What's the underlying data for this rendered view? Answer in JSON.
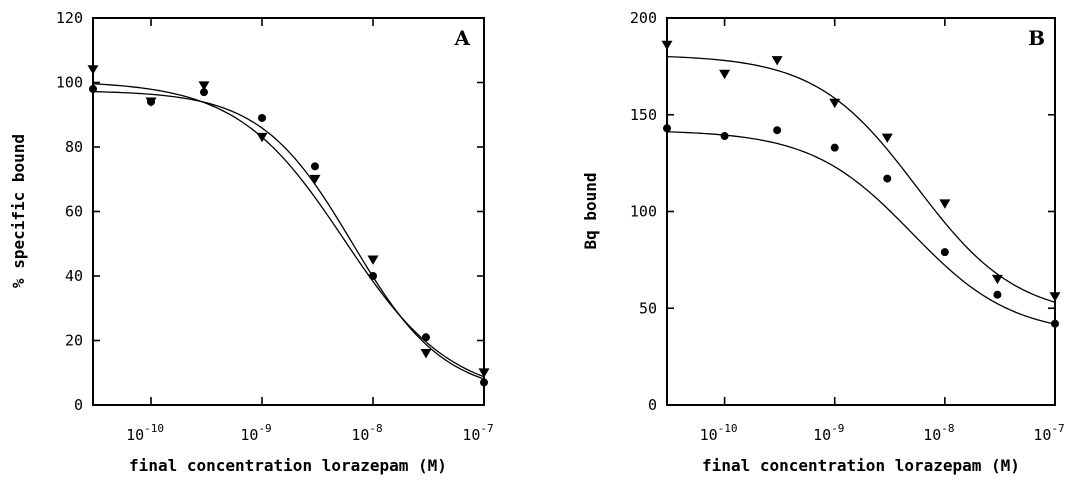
{
  "chart_data": [
    {
      "type": "scatter",
      "panel_label": "A",
      "xlabel": "final concentration lorazepam (M)",
      "ylabel": "% specific bound",
      "xscale": "log",
      "xlim": [
        3e-11,
        1e-07
      ],
      "ylim": [
        0,
        120
      ],
      "yticks": [
        0,
        20,
        40,
        60,
        80,
        100,
        120
      ],
      "xticks": [
        1e-10,
        1e-09,
        1e-08,
        1e-07
      ],
      "xtick_bases": [
        "10",
        "10",
        "10",
        "10"
      ],
      "xtick_exponents": [
        "-10",
        "-9",
        "-8",
        "-7"
      ],
      "series": [
        {
          "marker": "circle",
          "x": [
            3e-11,
            1e-10,
            3e-10,
            1e-09,
            3e-09,
            1e-08,
            3e-08,
            1e-07
          ],
          "y": [
            98,
            94,
            97,
            89,
            74,
            40,
            21,
            7
          ],
          "fit": {
            "top": 97.5,
            "bottom": 3,
            "ic50": 6.5e-09,
            "hill": 1.05
          }
        },
        {
          "marker": "triangle-down",
          "x": [
            3e-11,
            1e-10,
            3e-10,
            1e-09,
            3e-09,
            1e-08,
            3e-08,
            1e-07
          ],
          "y": [
            104,
            94,
            99,
            83,
            70,
            45,
            16,
            10
          ],
          "fit": {
            "top": 100.5,
            "bottom": 2,
            "ic50": 5.5e-09,
            "hill": 0.9
          }
        }
      ]
    },
    {
      "type": "scatter",
      "panel_label": "B",
      "xlabel": "final concentration lorazepam (M)",
      "ylabel": "Bq bound",
      "xscale": "log",
      "xlim": [
        3e-11,
        1e-07
      ],
      "ylim": [
        0,
        200
      ],
      "yticks": [
        0,
        50,
        100,
        150,
        200
      ],
      "xticks": [
        1e-10,
        1e-09,
        1e-08,
        1e-07
      ],
      "xtick_bases": [
        "10",
        "10",
        "10",
        "10"
      ],
      "xtick_exponents": [
        "-10",
        "-9",
        "-8",
        "-7"
      ],
      "series": [
        {
          "marker": "circle",
          "x": [
            3e-11,
            1e-10,
            3e-10,
            1e-09,
            3e-09,
            1e-08,
            3e-08,
            1e-07
          ],
          "y": [
            143,
            139,
            142,
            133,
            117,
            79,
            57,
            42
          ],
          "fit": {
            "top": 142,
            "bottom": 36,
            "ic50": 5e-09,
            "hill": 0.95
          }
        },
        {
          "marker": "triangle-down",
          "x": [
            3e-11,
            1e-10,
            3e-10,
            1e-09,
            3e-09,
            1e-08,
            3e-08,
            1e-07
          ],
          "y": [
            186,
            171,
            178,
            156,
            138,
            104,
            65,
            56
          ],
          "fit": {
            "top": 181,
            "bottom": 45,
            "ic50": 5.5e-09,
            "hill": 0.95
          }
        }
      ]
    }
  ]
}
